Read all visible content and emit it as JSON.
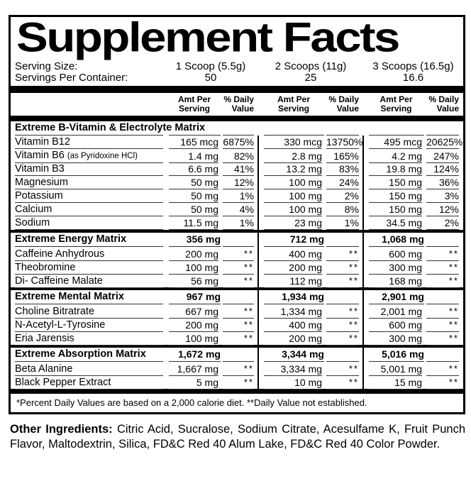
{
  "title": "Supplement Facts",
  "serving": {
    "size_label": "Serving Size:",
    "container_label": "Servings Per Container:",
    "columns": [
      {
        "size": "1 Scoop (5.5g)",
        "servings": "50"
      },
      {
        "size": "2 Scoops (11g)",
        "servings": "25"
      },
      {
        "size": "3 Scoops (16.5g)",
        "servings": "16.6"
      }
    ]
  },
  "column_headers": {
    "amt_line1": "Amt Per",
    "amt_line2": "Serving",
    "dv_line1": "% Daily",
    "dv_line2": "Value"
  },
  "sections": [
    {
      "name": "Extreme B-Vitamin & Electrolyte Matrix",
      "amounts": [
        "",
        "",
        ""
      ],
      "rows": [
        {
          "name": "Vitamin B12",
          "note": "",
          "v": [
            "165 mcg",
            "6875%",
            "330 mcg",
            "13750%",
            "495 mcg",
            "20625%"
          ]
        },
        {
          "name": "Vitamin B6",
          "note": "(as Pyridoxine HCl)",
          "v": [
            "1.4 mg",
            "82%",
            "2.8 mg",
            "165%",
            "4.2 mg",
            "247%"
          ]
        },
        {
          "name": "Vitamin B3",
          "note": "",
          "v": [
            "6.6 mg",
            "41%",
            "13.2 mg",
            "83%",
            "19.8 mg",
            "124%"
          ]
        },
        {
          "name": "Magnesium",
          "note": "",
          "v": [
            "50 mg",
            "12%",
            "100 mg",
            "24%",
            "150 mg",
            "36%"
          ]
        },
        {
          "name": "Potassium",
          "note": "",
          "v": [
            "50 mg",
            "1%",
            "100 mg",
            "2%",
            "150 mg",
            "3%"
          ]
        },
        {
          "name": "Calcium",
          "note": "",
          "v": [
            "50 mg",
            "4%",
            "100 mg",
            "8%",
            "150 mg",
            "12%"
          ]
        },
        {
          "name": "Sodium",
          "note": "",
          "v": [
            "11.5 mg",
            "1%",
            "23 mg",
            "1%",
            "34.5 mg",
            "2%"
          ]
        }
      ]
    },
    {
      "name": "Extreme Energy Matrix",
      "amounts": [
        "356 mg",
        "712 mg",
        "1,068 mg"
      ],
      "rows": [
        {
          "name": "Caffeine Anhydrous",
          "note": "",
          "v": [
            "200 mg",
            "**",
            "400 mg",
            "**",
            "600 mg",
            "**"
          ]
        },
        {
          "name": "Theobromine",
          "note": "",
          "v": [
            "100 mg",
            "**",
            "200 mg",
            "**",
            "300 mg",
            "**"
          ]
        },
        {
          "name": "Di- Caffeine Malate",
          "note": "",
          "v": [
            "56 mg",
            "**",
            "112 mg",
            "**",
            "168 mg",
            "**"
          ]
        }
      ]
    },
    {
      "name": "Extreme Mental Matrix",
      "amounts": [
        "967 mg",
        "1,934 mg",
        "2,901 mg"
      ],
      "rows": [
        {
          "name": "Choline Bitratrate",
          "note": "",
          "v": [
            "667 mg",
            "**",
            "1,334 mg",
            "**",
            "2,001 mg",
            "**"
          ]
        },
        {
          "name": "N-Acetyl-L-Tyrosine",
          "note": "",
          "v": [
            "200 mg",
            "**",
            "400 mg",
            "**",
            "600 mg",
            "**"
          ]
        },
        {
          "name": "Eria Jarensis",
          "note": "",
          "v": [
            "100 mg",
            "**",
            "200 mg",
            "**",
            "300 mg",
            "**"
          ]
        }
      ]
    },
    {
      "name": "Extreme Absorption Matrix",
      "amounts": [
        "1,672 mg",
        "3,344 mg",
        "5,016 mg"
      ],
      "rows": [
        {
          "name": "Beta Alanine",
          "note": "",
          "v": [
            "1,667 mg",
            "**",
            "3,334 mg",
            "**",
            "5,001 mg",
            "**"
          ]
        },
        {
          "name": "Black Pepper Extract",
          "note": "",
          "v": [
            "5 mg",
            "**",
            "10 mg",
            "**",
            "15 mg",
            "**"
          ]
        }
      ]
    }
  ],
  "footnote": "*Percent Daily Values are based on a 2,000 calorie diet.  **Daily Value not established.",
  "other_ingredients": {
    "label": "Other Ingredients:",
    "text": "Citric Acid, Sucralose, Sodium Citrate, Acesulfame K, Fruit Punch Flavor, Maltodextrin, Silica, FD&C Red 40 Alum Lake, FD&C Red 40 Color Powder."
  }
}
